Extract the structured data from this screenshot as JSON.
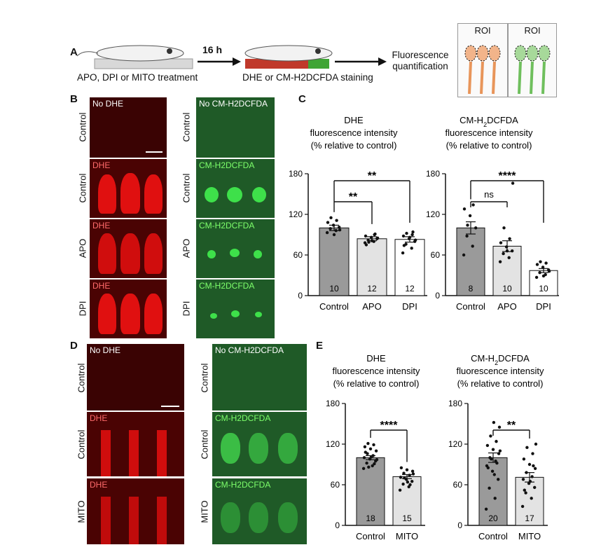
{
  "panel_labels": {
    "a": "A",
    "b": "B",
    "c": "C",
    "d": "D",
    "e": "E"
  },
  "schematic": {
    "step1_caption": "APO, DPI or MITO treatment",
    "time_label": "16 h",
    "step2_caption": "DHE or CM-H2DCFDA staining",
    "step3_caption_line1": "Fluorescence",
    "step3_caption_line2": "quantification",
    "roi_label_1": "ROI",
    "roi_label_2": "ROI"
  },
  "panel_b": {
    "red_tiles": [
      "No DHE",
      "DHE",
      "DHE",
      "DHE"
    ],
    "green_tiles": [
      "No CM-H2DCFDA",
      "CM-H2DCFDA",
      "CM-H2DCFDA",
      "CM-H2DCFDA"
    ],
    "row_labels_left": [
      "Control",
      "Control",
      "APO",
      "DPI"
    ],
    "row_labels_right": [
      "Control",
      "Control",
      "APO",
      "DPI"
    ]
  },
  "panel_d": {
    "red_tiles": [
      "No DHE",
      "DHE",
      "DHE"
    ],
    "green_tiles": [
      "No CM-H2DCFDA",
      "CM-H2DCFDA",
      "CM-H2DCFDA"
    ],
    "row_labels_left": [
      "Control",
      "Control",
      "MITO"
    ],
    "row_labels_right": [
      "Control",
      "Control",
      "MITO"
    ]
  },
  "colors": {
    "control_bar": "#9a9a9a",
    "treat_bar": "#e3e3e3",
    "dpi_bar": "#ffffff",
    "red_fluor": "#e01010",
    "green_fluor": "#3ee04a"
  },
  "chart_data": [
    {
      "type": "bar",
      "title_lines": [
        "DHE",
        "fluorescence intensity",
        "(% relative to control)"
      ],
      "categories": [
        "Control",
        "APO",
        "DPI"
      ],
      "values": [
        100,
        84,
        83
      ],
      "sem": [
        4,
        3,
        4
      ],
      "n": [
        "10",
        "12",
        "12"
      ],
      "ylim": [
        0,
        180
      ],
      "yticks": [
        "0",
        "60",
        "120",
        "180"
      ],
      "points": [
        [
          93,
          96,
          99,
          101,
          104,
          108,
          111,
          115,
          97,
          90
        ],
        [
          78,
          80,
          82,
          84,
          86,
          88,
          90,
          79,
          85,
          81,
          75,
          91
        ],
        [
          63,
          70,
          76,
          80,
          84,
          88,
          90,
          92,
          82,
          86,
          74,
          94
        ]
      ],
      "significance": [
        {
          "from": 0,
          "to": 1,
          "label": "**"
        },
        {
          "from": 0,
          "to": 2,
          "label": "**"
        }
      ]
    },
    {
      "type": "bar",
      "title_lines": [
        "CM-H2DCFDA",
        "fluorescence intensity",
        "(% relative to control)"
      ],
      "categories": [
        "Control",
        "APO",
        "DPI"
      ],
      "values": [
        100,
        73,
        37
      ],
      "sem": [
        9,
        8,
        3
      ],
      "n": [
        "8",
        "10",
        "10"
      ],
      "ylim": [
        0,
        180
      ],
      "yticks": [
        "0",
        "60",
        "120",
        "180"
      ],
      "points": [
        [
          60,
          73,
          88,
          100,
          118,
          128,
          134,
          104
        ],
        [
          50,
          56,
          62,
          66,
          72,
          78,
          84,
          100,
          166,
          66
        ],
        [
          27,
          31,
          34,
          38,
          42,
          46,
          48,
          50,
          36,
          29
        ]
      ],
      "significance": [
        {
          "from": 0,
          "to": 1,
          "label": "ns"
        },
        {
          "from": 0,
          "to": 2,
          "label": "****"
        }
      ]
    },
    {
      "type": "bar",
      "title_lines": [
        "DHE",
        "fluorescence intensity",
        "(% relative to control)"
      ],
      "categories": [
        "Control",
        "MITO"
      ],
      "values": [
        100,
        72
      ],
      "sem": [
        3,
        3
      ],
      "n": [
        "18",
        "15"
      ],
      "ylim": [
        0,
        180
      ],
      "yticks": [
        "0",
        "60",
        "120",
        "180"
      ],
      "points": [
        [
          84,
          88,
          92,
          95,
          98,
          100,
          103,
          106,
          110,
          113,
          116,
          119,
          121,
          97,
          101,
          108,
          91,
          86
        ],
        [
          52,
          57,
          61,
          65,
          68,
          71,
          74,
          77,
          80,
          82,
          85,
          60,
          70,
          76,
          64
        ]
      ],
      "significance": [
        {
          "from": 0,
          "to": 1,
          "label": "****"
        }
      ]
    },
    {
      "type": "bar",
      "title_lines": [
        "CM-H2DCFDA",
        "fluorescence intensity",
        "(% relative to control)"
      ],
      "categories": [
        "Control",
        "MITO"
      ],
      "values": [
        100,
        71
      ],
      "sem": [
        7,
        7
      ],
      "n": [
        "20",
        "17"
      ],
      "ylim": [
        0,
        180
      ],
      "yticks": [
        "0",
        "60",
        "120",
        "180"
      ],
      "points": [
        [
          24,
          40,
          55,
          68,
          80,
          88,
          95,
          100,
          106,
          112,
          118,
          124,
          132,
          145,
          152,
          85,
          92,
          98,
          110,
          75
        ],
        [
          28,
          40,
          48,
          56,
          62,
          68,
          72,
          78,
          84,
          90,
          98,
          106,
          115,
          120,
          65,
          52,
          88
        ]
      ],
      "significance": [
        {
          "from": 0,
          "to": 1,
          "label": "**"
        }
      ]
    }
  ]
}
